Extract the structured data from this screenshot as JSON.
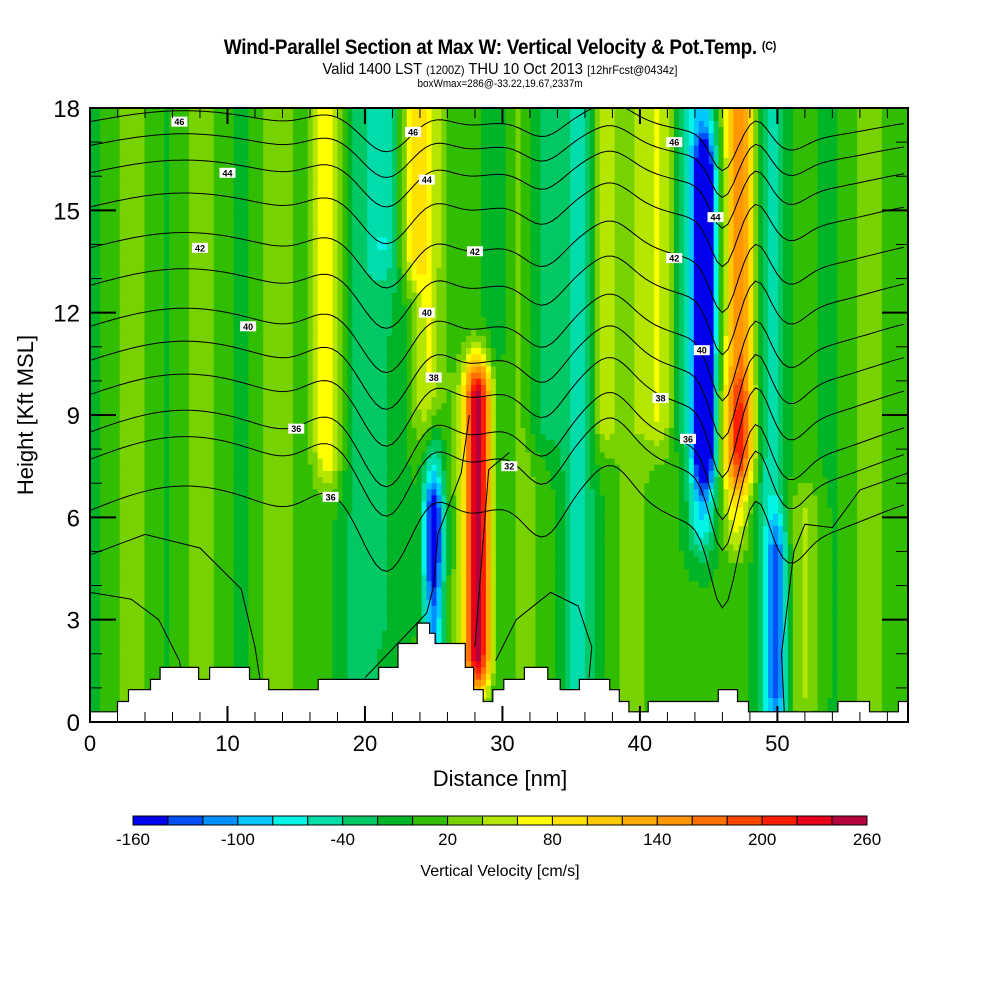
{
  "header": {
    "title": "Wind-Parallel Section at Max W: Vertical Velocity & Pot.Temp.",
    "copyright": "(C)",
    "valid_prefix": "Valid 1400 LST",
    "valid_utc": "(1200Z)",
    "valid_date": "THU 10 Oct 2013",
    "forecast": "[12hrFcst@0434z]",
    "boxwmax": "boxWmax=286@-33.22,19.67,2337m"
  },
  "chart_data": {
    "type": "heatmap",
    "title": "Wind-Parallel Section at Max W: Vertical Velocity & Pot.Temp.",
    "xlabel": "Distance [nm]",
    "ylabel": "Height [Kft MSL]",
    "xlim": [
      0,
      59.5
    ],
    "ylim": [
      0,
      18
    ],
    "xticks": [
      0,
      10,
      20,
      30,
      40,
      50
    ],
    "xtick_labels": [
      "0",
      "10",
      "20",
      "30",
      "40",
      "50"
    ],
    "yticks": [
      0,
      3,
      6,
      9,
      12,
      15,
      18
    ],
    "ytick_labels": [
      "0",
      "3",
      "6",
      "9",
      "12",
      "15",
      "18"
    ],
    "colorbar": {
      "label": "Vertical Velocity [cm/s]",
      "levels": [
        -160,
        -140,
        -120,
        -100,
        -80,
        -60,
        -40,
        -20,
        0,
        20,
        40,
        60,
        80,
        100,
        120,
        140,
        160,
        180,
        200,
        220,
        240,
        260
      ],
      "tick_labels": [
        "-160",
        "-100",
        "-40",
        "20",
        "80",
        "140",
        "200",
        "260"
      ],
      "colors": [
        "#0000f0",
        "#0050f5",
        "#0090ff",
        "#00c8ff",
        "#00f5e6",
        "#00dcaa",
        "#00c864",
        "#00b428",
        "#32be00",
        "#78d200",
        "#b4e600",
        "#ffff00",
        "#ffe100",
        "#ffc800",
        "#ffaa00",
        "#ff9600",
        "#ff7000",
        "#ff4600",
        "#ff1e00",
        "#e6001e",
        "#b4003c"
      ]
    },
    "contour_labels": [
      {
        "value": "46",
        "x": 6.5,
        "y": 17.6
      },
      {
        "value": "46",
        "x": 23.5,
        "y": 17.3
      },
      {
        "value": "46",
        "x": 42.5,
        "y": 17.0
      },
      {
        "value": "44",
        "x": 10.0,
        "y": 16.1
      },
      {
        "value": "44",
        "x": 24.5,
        "y": 15.9
      },
      {
        "value": "44",
        "x": 45.5,
        "y": 14.8
      },
      {
        "value": "42",
        "x": 8.0,
        "y": 13.9
      },
      {
        "value": "42",
        "x": 28.0,
        "y": 13.8
      },
      {
        "value": "42",
        "x": 42.5,
        "y": 13.6
      },
      {
        "value": "40",
        "x": 11.5,
        "y": 11.6
      },
      {
        "value": "40",
        "x": 24.5,
        "y": 12.0
      },
      {
        "value": "40",
        "x": 44.5,
        "y": 10.9
      },
      {
        "value": "38",
        "x": 25.0,
        "y": 10.1
      },
      {
        "value": "38",
        "x": 41.5,
        "y": 9.5
      },
      {
        "value": "36",
        "x": 15.0,
        "y": 8.6
      },
      {
        "value": "36",
        "x": 43.5,
        "y": 8.3
      },
      {
        "value": "36",
        "x": 17.5,
        "y": 6.6
      },
      {
        "value": "32",
        "x": 30.5,
        "y": 7.5
      }
    ],
    "terrain_kft": {
      "description_x_nm": [
        0,
        2.0,
        2.8,
        4.4,
        5.1,
        7.9,
        8.7,
        11.6,
        13.0,
        16.6,
        21.0,
        22.4,
        23.8,
        24.7,
        25.1,
        27.3,
        27.9,
        28.6,
        29.3,
        30.1,
        31.6,
        33.3,
        34.2,
        35.6,
        37.8,
        38.5,
        39.2,
        40.6,
        45.7,
        47.1,
        47.9,
        54.4,
        56.7,
        58.8
      ],
      "height": [
        0.3,
        0.6,
        0.95,
        1.25,
        1.6,
        1.25,
        1.6,
        1.25,
        0.95,
        1.25,
        1.6,
        2.3,
        2.9,
        2.6,
        2.3,
        1.6,
        0.95,
        0.6,
        0.95,
        1.25,
        1.6,
        1.25,
        0.95,
        1.25,
        0.95,
        0.6,
        0.3,
        0.6,
        0.95,
        0.6,
        0.3,
        0.6,
        0.3,
        0.6
      ]
    }
  }
}
